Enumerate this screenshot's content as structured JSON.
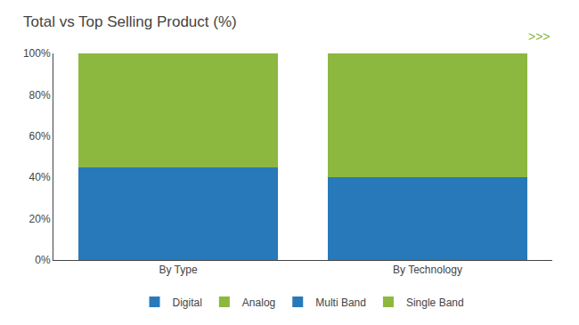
{
  "chart_data": {
    "type": "bar",
    "title": "Total vs Top Selling Product (%)",
    "categories": [
      "By Type",
      "By Technology"
    ],
    "stacked": true,
    "series": [
      {
        "name": "Digital",
        "color": "#2879b9",
        "values": [
          45,
          null
        ]
      },
      {
        "name": "Analog",
        "color": "#8db840",
        "values": [
          55,
          null
        ]
      },
      {
        "name": "Multi Band",
        "color": "#2879b9",
        "values": [
          null,
          40
        ]
      },
      {
        "name": "Single Band",
        "color": "#8db840",
        "values": [
          null,
          60
        ]
      }
    ],
    "ylim": [
      0,
      100
    ],
    "yticks": [
      {
        "value": 0,
        "label": "0%"
      },
      {
        "value": 20,
        "label": "20%"
      },
      {
        "value": 40,
        "label": "40%"
      },
      {
        "value": 60,
        "label": "60%"
      },
      {
        "value": 80,
        "label": "80%"
      },
      {
        "value": 100,
        "label": "100%"
      }
    ],
    "grid": false,
    "legend": "bottom",
    "annotations": [
      {
        "text": ">>>",
        "color": "#8db840"
      }
    ]
  }
}
